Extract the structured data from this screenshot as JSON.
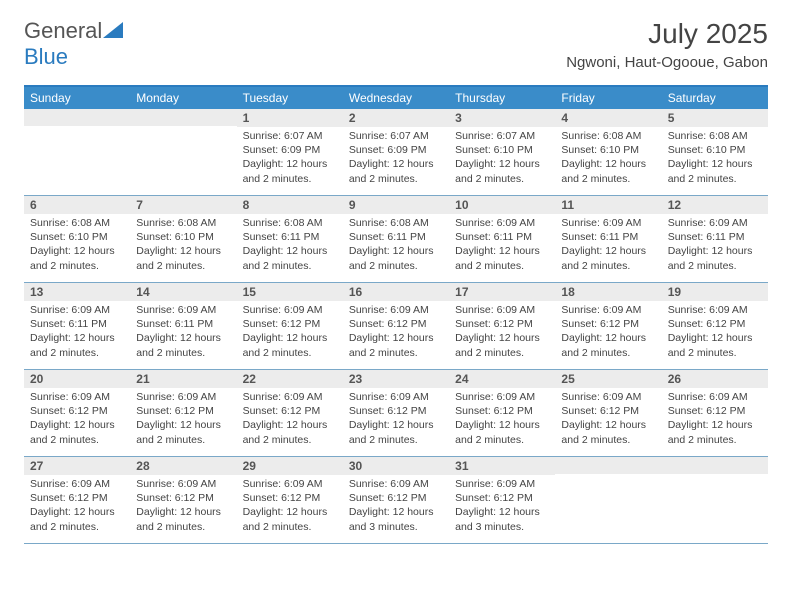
{
  "logo": {
    "text_general": "General",
    "text_blue": "Blue"
  },
  "title": "July 2025",
  "location": "Ngwoni, Haut-Ogooue, Gabon",
  "colors": {
    "header_bar": "#3a8cc9",
    "header_border": "#2a7bbf",
    "daynum_bg": "#ececec",
    "week_border": "#7aa8c8",
    "text": "#444444",
    "logo_gray": "#555555",
    "logo_blue": "#2a7bbf",
    "background": "#ffffff"
  },
  "typography": {
    "title_fontsize": 28,
    "location_fontsize": 15,
    "weekday_fontsize": 12,
    "daynum_fontsize": 12,
    "body_fontsize": 10.5,
    "logo_fontsize": 22
  },
  "layout": {
    "columns": 7,
    "rows": 5,
    "cell_min_height": 86
  },
  "weekdays": [
    "Sunday",
    "Monday",
    "Tuesday",
    "Wednesday",
    "Thursday",
    "Friday",
    "Saturday"
  ],
  "weeks": [
    [
      {
        "num": "",
        "sunrise": "",
        "sunset": "",
        "daylight": ""
      },
      {
        "num": "",
        "sunrise": "",
        "sunset": "",
        "daylight": ""
      },
      {
        "num": "1",
        "sunrise": "Sunrise: 6:07 AM",
        "sunset": "Sunset: 6:09 PM",
        "daylight": "Daylight: 12 hours and 2 minutes."
      },
      {
        "num": "2",
        "sunrise": "Sunrise: 6:07 AM",
        "sunset": "Sunset: 6:09 PM",
        "daylight": "Daylight: 12 hours and 2 minutes."
      },
      {
        "num": "3",
        "sunrise": "Sunrise: 6:07 AM",
        "sunset": "Sunset: 6:10 PM",
        "daylight": "Daylight: 12 hours and 2 minutes."
      },
      {
        "num": "4",
        "sunrise": "Sunrise: 6:08 AM",
        "sunset": "Sunset: 6:10 PM",
        "daylight": "Daylight: 12 hours and 2 minutes."
      },
      {
        "num": "5",
        "sunrise": "Sunrise: 6:08 AM",
        "sunset": "Sunset: 6:10 PM",
        "daylight": "Daylight: 12 hours and 2 minutes."
      }
    ],
    [
      {
        "num": "6",
        "sunrise": "Sunrise: 6:08 AM",
        "sunset": "Sunset: 6:10 PM",
        "daylight": "Daylight: 12 hours and 2 minutes."
      },
      {
        "num": "7",
        "sunrise": "Sunrise: 6:08 AM",
        "sunset": "Sunset: 6:10 PM",
        "daylight": "Daylight: 12 hours and 2 minutes."
      },
      {
        "num": "8",
        "sunrise": "Sunrise: 6:08 AM",
        "sunset": "Sunset: 6:11 PM",
        "daylight": "Daylight: 12 hours and 2 minutes."
      },
      {
        "num": "9",
        "sunrise": "Sunrise: 6:08 AM",
        "sunset": "Sunset: 6:11 PM",
        "daylight": "Daylight: 12 hours and 2 minutes."
      },
      {
        "num": "10",
        "sunrise": "Sunrise: 6:09 AM",
        "sunset": "Sunset: 6:11 PM",
        "daylight": "Daylight: 12 hours and 2 minutes."
      },
      {
        "num": "11",
        "sunrise": "Sunrise: 6:09 AM",
        "sunset": "Sunset: 6:11 PM",
        "daylight": "Daylight: 12 hours and 2 minutes."
      },
      {
        "num": "12",
        "sunrise": "Sunrise: 6:09 AM",
        "sunset": "Sunset: 6:11 PM",
        "daylight": "Daylight: 12 hours and 2 minutes."
      }
    ],
    [
      {
        "num": "13",
        "sunrise": "Sunrise: 6:09 AM",
        "sunset": "Sunset: 6:11 PM",
        "daylight": "Daylight: 12 hours and 2 minutes."
      },
      {
        "num": "14",
        "sunrise": "Sunrise: 6:09 AM",
        "sunset": "Sunset: 6:11 PM",
        "daylight": "Daylight: 12 hours and 2 minutes."
      },
      {
        "num": "15",
        "sunrise": "Sunrise: 6:09 AM",
        "sunset": "Sunset: 6:12 PM",
        "daylight": "Daylight: 12 hours and 2 minutes."
      },
      {
        "num": "16",
        "sunrise": "Sunrise: 6:09 AM",
        "sunset": "Sunset: 6:12 PM",
        "daylight": "Daylight: 12 hours and 2 minutes."
      },
      {
        "num": "17",
        "sunrise": "Sunrise: 6:09 AM",
        "sunset": "Sunset: 6:12 PM",
        "daylight": "Daylight: 12 hours and 2 minutes."
      },
      {
        "num": "18",
        "sunrise": "Sunrise: 6:09 AM",
        "sunset": "Sunset: 6:12 PM",
        "daylight": "Daylight: 12 hours and 2 minutes."
      },
      {
        "num": "19",
        "sunrise": "Sunrise: 6:09 AM",
        "sunset": "Sunset: 6:12 PM",
        "daylight": "Daylight: 12 hours and 2 minutes."
      }
    ],
    [
      {
        "num": "20",
        "sunrise": "Sunrise: 6:09 AM",
        "sunset": "Sunset: 6:12 PM",
        "daylight": "Daylight: 12 hours and 2 minutes."
      },
      {
        "num": "21",
        "sunrise": "Sunrise: 6:09 AM",
        "sunset": "Sunset: 6:12 PM",
        "daylight": "Daylight: 12 hours and 2 minutes."
      },
      {
        "num": "22",
        "sunrise": "Sunrise: 6:09 AM",
        "sunset": "Sunset: 6:12 PM",
        "daylight": "Daylight: 12 hours and 2 minutes."
      },
      {
        "num": "23",
        "sunrise": "Sunrise: 6:09 AM",
        "sunset": "Sunset: 6:12 PM",
        "daylight": "Daylight: 12 hours and 2 minutes."
      },
      {
        "num": "24",
        "sunrise": "Sunrise: 6:09 AM",
        "sunset": "Sunset: 6:12 PM",
        "daylight": "Daylight: 12 hours and 2 minutes."
      },
      {
        "num": "25",
        "sunrise": "Sunrise: 6:09 AM",
        "sunset": "Sunset: 6:12 PM",
        "daylight": "Daylight: 12 hours and 2 minutes."
      },
      {
        "num": "26",
        "sunrise": "Sunrise: 6:09 AM",
        "sunset": "Sunset: 6:12 PM",
        "daylight": "Daylight: 12 hours and 2 minutes."
      }
    ],
    [
      {
        "num": "27",
        "sunrise": "Sunrise: 6:09 AM",
        "sunset": "Sunset: 6:12 PM",
        "daylight": "Daylight: 12 hours and 2 minutes."
      },
      {
        "num": "28",
        "sunrise": "Sunrise: 6:09 AM",
        "sunset": "Sunset: 6:12 PM",
        "daylight": "Daylight: 12 hours and 2 minutes."
      },
      {
        "num": "29",
        "sunrise": "Sunrise: 6:09 AM",
        "sunset": "Sunset: 6:12 PM",
        "daylight": "Daylight: 12 hours and 2 minutes."
      },
      {
        "num": "30",
        "sunrise": "Sunrise: 6:09 AM",
        "sunset": "Sunset: 6:12 PM",
        "daylight": "Daylight: 12 hours and 3 minutes."
      },
      {
        "num": "31",
        "sunrise": "Sunrise: 6:09 AM",
        "sunset": "Sunset: 6:12 PM",
        "daylight": "Daylight: 12 hours and 3 minutes."
      },
      {
        "num": "",
        "sunrise": "",
        "sunset": "",
        "daylight": ""
      },
      {
        "num": "",
        "sunrise": "",
        "sunset": "",
        "daylight": ""
      }
    ]
  ]
}
